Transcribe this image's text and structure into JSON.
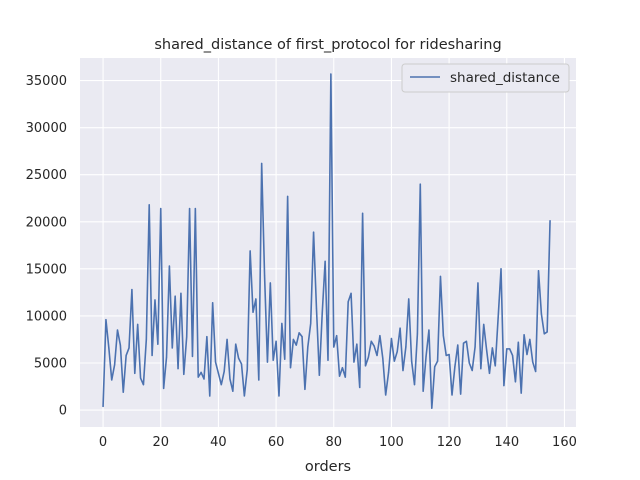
{
  "chart_data": {
    "type": "line",
    "title": "shared_distance of first_protocol for ridesharing",
    "xlabel": "orders",
    "ylabel": "",
    "xlim": [
      -8,
      164
    ],
    "ylim": [
      -1800,
      37400
    ],
    "xticks": [
      0,
      20,
      40,
      60,
      80,
      100,
      120,
      140,
      160
    ],
    "yticks": [
      0,
      5000,
      10000,
      15000,
      20000,
      25000,
      30000,
      35000
    ],
    "grid": true,
    "legend_position": "top-right",
    "colors": {
      "line": "#4c72b0",
      "background": "#eaeaf2",
      "grid": "#ffffff"
    },
    "series": [
      {
        "name": "shared_distance",
        "values": [
          400,
          9600,
          6600,
          3200,
          4800,
          8500,
          6900,
          1900,
          5800,
          6600,
          12800,
          3900,
          9100,
          3400,
          2700,
          7500,
          21800,
          5800,
          11700,
          7000,
          21400,
          2300,
          5600,
          15300,
          6600,
          12100,
          4400,
          12400,
          3800,
          7800,
          21400,
          5700,
          21400,
          3500,
          4000,
          3300,
          7800,
          1500,
          11400,
          5100,
          3900,
          2700,
          4100,
          7500,
          3300,
          2000,
          7000,
          5500,
          4900,
          1500,
          4300,
          16900,
          10400,
          11800,
          3200,
          26200,
          14300,
          5100,
          13500,
          5300,
          7300,
          1500,
          9200,
          5400,
          22700,
          4500,
          7500,
          6900,
          8200,
          7800,
          2200,
          6700,
          9200,
          18900,
          10800,
          3700,
          10300,
          15800,
          5300,
          35700,
          6700,
          7900,
          3600,
          4500,
          3500,
          11500,
          12400,
          5100,
          7000,
          2400,
          20900,
          4700,
          5600,
          7300,
          6800,
          5800,
          7900,
          5500,
          1600,
          4000,
          7600,
          5200,
          6200,
          8700,
          4200,
          6700,
          11800,
          5200,
          2700,
          8100,
          24000,
          2000,
          5700,
          8500,
          200,
          4600,
          5200,
          14200,
          7900,
          5800,
          5900,
          1600,
          4600,
          6900,
          1700,
          7100,
          7300,
          5000,
          4200,
          6700,
          13500,
          4400,
          9100,
          6400,
          3900,
          6600,
          4700,
          9800,
          15000,
          2600,
          6500,
          6500,
          5800,
          3000,
          7200,
          1800,
          8000,
          5900,
          7500,
          5100,
          4100,
          14800,
          10200,
          8100,
          8300,
          20100
        ]
      }
    ]
  }
}
